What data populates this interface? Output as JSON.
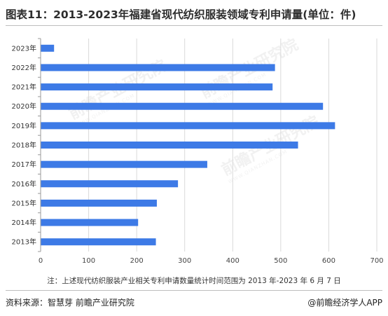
{
  "title": "图表11：2013-2023年福建省现代纺织服装领域专利申请量(单位：件)",
  "note": "注：上述现代纺织服装产业相关专利申请数量统计时间范围为 2013 年-2023 年 6 月 7 日",
  "footer": {
    "source": "资料来源：智慧芽 前瞻产业研究院",
    "brand": "@前瞻经济学人APP"
  },
  "watermark": "前瞻产业研究院",
  "colors": {
    "bar": "#3d7ae6",
    "grid": "#d9d9d9"
  },
  "chart_data": {
    "type": "bar",
    "orientation": "horizontal",
    "categories": [
      "2023年",
      "2022年",
      "2021年",
      "2020年",
      "2019年",
      "2018年",
      "2017年",
      "2016年",
      "2015年",
      "2014年",
      "2013年"
    ],
    "values": [
      28,
      488,
      483,
      588,
      613,
      536,
      347,
      286,
      242,
      203,
      240
    ],
    "xlim": [
      0,
      700
    ],
    "xticks": [
      0,
      100,
      200,
      300,
      400,
      500,
      600,
      700
    ],
    "grid": true,
    "legend": "none"
  }
}
